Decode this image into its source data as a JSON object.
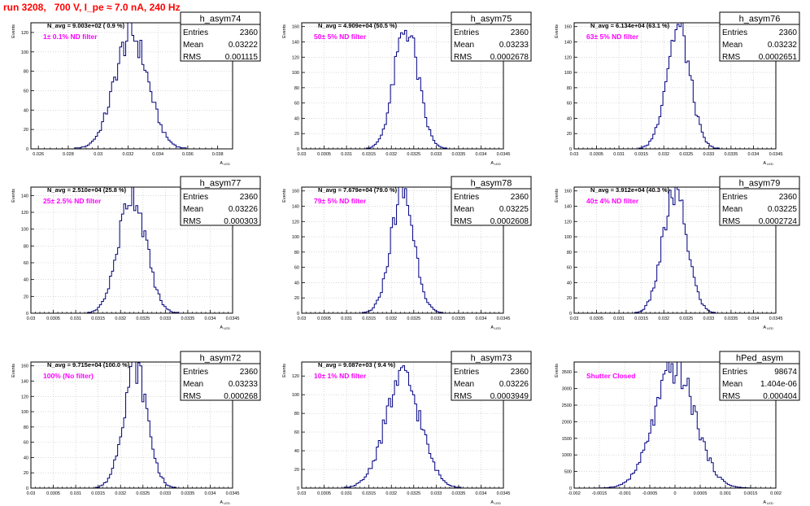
{
  "page": {
    "title": "run 3208,   700 V, I_pe ≈ 7.0 nA, 240 Hz",
    "colors": {
      "title": "#ff0000",
      "histogram": "#000080",
      "note": "#ff00ff",
      "grid": "#c0c0c0"
    }
  },
  "stat_labels": {
    "entries": "Entries",
    "mean": "Mean",
    "rms": "RMS"
  },
  "axis_labels": {
    "x": "A",
    "x_sub": "LED",
    "y": "Events"
  },
  "chart_data": [
    {
      "type": "bar",
      "name": "h_asym74",
      "title": "N_avg = 9.003e+02 ( 0.9 %)",
      "note": "1± 0.1% ND filter",
      "stats": {
        "entries": "2360",
        "mean": "0.03222",
        "rms": "0.001115"
      },
      "xlim": [
        0.0255,
        0.039
      ],
      "ylim": [
        0,
        130
      ],
      "xticks": [
        0.026,
        0.028,
        0.03,
        0.032,
        0.034,
        0.036,
        0.038
      ],
      "xtick_labels": [
        "0.026",
        "0.028",
        "0.03",
        "0.032",
        "0.034",
        "0.036",
        "0.038"
      ],
      "yticks": [
        0,
        20,
        40,
        60,
        80,
        100,
        120
      ],
      "gen": {
        "mean": 0.03222,
        "sigma": 0.001115,
        "peak": 118,
        "bins": 100
      }
    },
    {
      "type": "bar",
      "name": "h_asym75",
      "title": "N_avg = 4.909e+04 (50.5 %)",
      "note": "50± 5% ND filter",
      "stats": {
        "entries": "2360",
        "mean": "0.03233",
        "rms": "0.0002678"
      },
      "xlim": [
        0.03,
        0.0345
      ],
      "ylim": [
        0,
        165
      ],
      "xticks": [
        0.03,
        0.0305,
        0.031,
        0.0315,
        0.032,
        0.0325,
        0.033,
        0.0335,
        0.034,
        0.0345
      ],
      "xtick_labels": [
        "0.03",
        "0.0305",
        "0.031",
        "0.0315",
        "0.032",
        "0.0325",
        "0.033",
        "0.0335",
        "0.034",
        "0.0345"
      ],
      "yticks": [
        0,
        20,
        40,
        60,
        80,
        100,
        120,
        140,
        160
      ],
      "gen": {
        "mean": 0.03233,
        "sigma": 0.0002678,
        "peak": 158,
        "bins": 100
      }
    },
    {
      "type": "bar",
      "name": "h_asym76",
      "title": "N_avg = 6.134e+04 (63.1 %)",
      "note": "63± 5% ND filter",
      "stats": {
        "entries": "2360",
        "mean": "0.03232",
        "rms": "0.0002651"
      },
      "xlim": [
        0.03,
        0.0345
      ],
      "ylim": [
        0,
        165
      ],
      "xticks": [
        0.03,
        0.0305,
        0.031,
        0.0315,
        0.032,
        0.0325,
        0.033,
        0.0335,
        0.034,
        0.0345
      ],
      "xtick_labels": [
        "0.03",
        "0.0305",
        "0.031",
        "0.0315",
        "0.032",
        "0.0325",
        "0.033",
        "0.0335",
        "0.034",
        "0.0345"
      ],
      "yticks": [
        0,
        20,
        40,
        60,
        80,
        100,
        120,
        140,
        160
      ],
      "gen": {
        "mean": 0.03232,
        "sigma": 0.0002651,
        "peak": 158,
        "bins": 100
      }
    },
    {
      "type": "bar",
      "name": "h_asym77",
      "title": "N_avg = 2.510e+04 (25.8 %)",
      "note": "25± 2.5% ND filter",
      "stats": {
        "entries": "2360",
        "mean": "0.03226",
        "rms": "0.000303"
      },
      "xlim": [
        0.03,
        0.0345
      ],
      "ylim": [
        0,
        150
      ],
      "xticks": [
        0.03,
        0.0305,
        0.031,
        0.0315,
        0.032,
        0.0325,
        0.033,
        0.0335,
        0.034,
        0.0345
      ],
      "xtick_labels": [
        "0.03",
        "0.0305",
        "0.031",
        "0.0315",
        "0.032",
        "0.0325",
        "0.033",
        "0.0335",
        "0.034",
        "0.0345"
      ],
      "yticks": [
        0,
        20,
        40,
        60,
        80,
        100,
        120,
        140
      ],
      "gen": {
        "mean": 0.03226,
        "sigma": 0.000303,
        "peak": 143,
        "bins": 100
      }
    },
    {
      "type": "bar",
      "name": "h_asym78",
      "title": "N_avg = 7.679e+04 (79.0 %)",
      "note": "79± 5% ND filter",
      "stats": {
        "entries": "2360",
        "mean": "0.03225",
        "rms": "0.0002608"
      },
      "xlim": [
        0.03,
        0.0345
      ],
      "ylim": [
        0,
        165
      ],
      "xticks": [
        0.03,
        0.0305,
        0.031,
        0.0315,
        0.032,
        0.0325,
        0.033,
        0.0335,
        0.034,
        0.0345
      ],
      "xtick_labels": [
        "0.03",
        "0.0305",
        "0.031",
        "0.0315",
        "0.032",
        "0.0325",
        "0.033",
        "0.0335",
        "0.034",
        "0.0345"
      ],
      "yticks": [
        0,
        20,
        40,
        60,
        80,
        100,
        120,
        140,
        160
      ],
      "gen": {
        "mean": 0.03225,
        "sigma": 0.0002608,
        "peak": 158,
        "bins": 100
      }
    },
    {
      "type": "bar",
      "name": "h_asym79",
      "title": "N_avg = 3.912e+04 (40.3 %)",
      "note": "40± 4% ND filter",
      "stats": {
        "entries": "2360",
        "mean": "0.03225",
        "rms": "0.0002724"
      },
      "xlim": [
        0.03,
        0.0345
      ],
      "ylim": [
        0,
        165
      ],
      "xticks": [
        0.03,
        0.0305,
        0.031,
        0.0315,
        0.032,
        0.0325,
        0.033,
        0.0335,
        0.034,
        0.0345
      ],
      "xtick_labels": [
        "0.03",
        "0.0305",
        "0.031",
        "0.0315",
        "0.032",
        "0.0325",
        "0.033",
        "0.0335",
        "0.034",
        "0.0345"
      ],
      "yticks": [
        0,
        20,
        40,
        60,
        80,
        100,
        120,
        140,
        160
      ],
      "gen": {
        "mean": 0.03225,
        "sigma": 0.0002724,
        "peak": 156,
        "bins": 100
      }
    },
    {
      "type": "bar",
      "name": "h_asym72",
      "title": "N_avg = 9.715e+04 (100.0 %)",
      "note": "100% (No filter)",
      "stats": {
        "entries": "2360",
        "mean": "0.03233",
        "rms": "0.000268"
      },
      "xlim": [
        0.03,
        0.0345
      ],
      "ylim": [
        0,
        165
      ],
      "xticks": [
        0.03,
        0.0305,
        0.031,
        0.0315,
        0.032,
        0.0325,
        0.033,
        0.0335,
        0.034,
        0.0345
      ],
      "xtick_labels": [
        "0.03",
        "0.0305",
        "0.031",
        "0.0315",
        "0.032",
        "0.0325",
        "0.033",
        "0.0335",
        "0.034",
        "0.0345"
      ],
      "yticks": [
        0,
        20,
        40,
        60,
        80,
        100,
        120,
        140,
        160
      ],
      "gen": {
        "mean": 0.03233,
        "sigma": 0.000268,
        "peak": 158,
        "bins": 100
      }
    },
    {
      "type": "bar",
      "name": "h_asym73",
      "title": "N_avg = 9.087e+03 ( 9.4 %)",
      "note": "10± 1% ND filter",
      "stats": {
        "entries": "2360",
        "mean": "0.03226",
        "rms": "0.0003949"
      },
      "xlim": [
        0.03,
        0.0345
      ],
      "ylim": [
        0,
        135
      ],
      "xticks": [
        0.03,
        0.0305,
        0.031,
        0.0315,
        0.032,
        0.0325,
        0.033,
        0.0335,
        0.034,
        0.0345
      ],
      "xtick_labels": [
        "0.03",
        "0.0305",
        "0.031",
        "0.0315",
        "0.032",
        "0.0325",
        "0.033",
        "0.0335",
        "0.034",
        "0.0345"
      ],
      "yticks": [
        0,
        20,
        40,
        60,
        80,
        100,
        120
      ],
      "gen": {
        "mean": 0.03226,
        "sigma": 0.0003949,
        "peak": 118,
        "bins": 100
      }
    },
    {
      "type": "bar",
      "name": "hPed_asym",
      "title": "",
      "note": "Shutter Closed",
      "stats": {
        "entries": "98674",
        "mean": "1.404e-06",
        "rms": "0.000404"
      },
      "xlim": [
        -0.002,
        0.002
      ],
      "ylim": [
        0,
        3800
      ],
      "xticks": [
        -0.002,
        -0.0015,
        -0.001,
        -0.0005,
        0,
        0.0005,
        0.001,
        0.0015,
        0.002
      ],
      "xtick_labels": [
        "-0.002",
        "-0.0015",
        "-0.001",
        "-0.0005",
        "0",
        "0.0005",
        "0.001",
        "0.0015",
        "0.002"
      ],
      "yticks": [
        0,
        500,
        1000,
        1500,
        2000,
        2500,
        3000,
        3500
      ],
      "gen": {
        "mean": 0.0,
        "sigma": 0.000404,
        "peak": 3600,
        "bins": 100
      }
    }
  ]
}
